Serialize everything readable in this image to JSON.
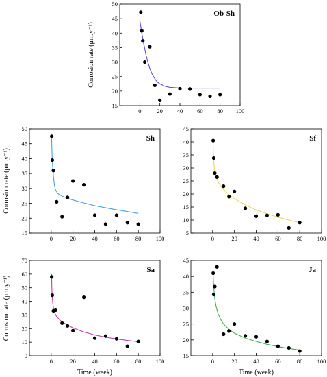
{
  "chart_data": [
    {
      "type": "scatter",
      "title": "Ob-Sh",
      "xlabel": "",
      "ylabel": "Corrosion rate (μm.y⁻¹)",
      "ylabel_sup": "-1",
      "xlim": [
        -20,
        100
      ],
      "ylim": [
        15,
        50
      ],
      "xticks": [
        0,
        20,
        40,
        60,
        80,
        100
      ],
      "yticks": [
        15,
        20,
        25,
        30,
        35,
        40,
        45,
        50
      ],
      "fit_color": "#5a4fd8",
      "points": {
        "x": [
          1,
          2,
          3,
          5,
          10,
          15,
          20,
          30,
          40,
          50,
          60,
          70,
          80
        ],
        "y": [
          47.2,
          40.8,
          37.3,
          30.0,
          35.3,
          22.0,
          16.8,
          19.0,
          20.8,
          20.7,
          18.8,
          18.2,
          18.8
        ]
      },
      "fit": {
        "x": [
          0,
          2,
          4,
          6,
          8,
          10,
          12,
          14,
          16,
          18,
          20,
          25,
          30,
          40,
          50,
          60,
          70,
          80
        ],
        "y": [
          44.5,
          40.0,
          36.2,
          32.8,
          30.0,
          27.8,
          26.1,
          24.8,
          23.8,
          23.0,
          22.5,
          21.7,
          21.3,
          21.05,
          21.0,
          21.0,
          21.0,
          21.0
        ]
      }
    },
    {
      "type": "scatter",
      "title": "Sh",
      "xlabel": "",
      "ylabel": "Corrosion rate (μm.y⁻¹)",
      "ylabel_sup": "-1",
      "xlim": [
        -20,
        100
      ],
      "ylim": [
        15,
        50
      ],
      "xticks": [
        0,
        20,
        40,
        60,
        80,
        100
      ],
      "yticks": [
        15,
        20,
        25,
        30,
        35,
        40,
        45,
        50
      ],
      "fit_color": "#4a9fe0",
      "points": {
        "x": [
          0.5,
          1,
          2,
          5,
          10,
          15,
          20,
          30,
          40,
          50,
          60,
          70,
          80
        ],
        "y": [
          47.5,
          39.5,
          36.0,
          25.5,
          20.5,
          27.0,
          32.5,
          31.2,
          21.0,
          18.0,
          21.0,
          18.5,
          18.0
        ]
      },
      "fit": {
        "x": [
          0.3,
          0.6,
          1,
          1.5,
          2,
          3,
          4,
          6,
          8,
          10,
          15,
          20,
          30,
          40,
          50,
          60,
          70,
          80
        ],
        "y": [
          48.0,
          43.5,
          39.8,
          36.6,
          34.2,
          31.0,
          29.5,
          28.3,
          27.8,
          27.4,
          26.7,
          26.1,
          25.1,
          24.2,
          23.5,
          22.8,
          22.2,
          21.6
        ]
      }
    },
    {
      "type": "scatter",
      "title": "Sf",
      "xlabel": "",
      "ylabel": "",
      "xlim": [
        -20,
        100
      ],
      "ylim": [
        5,
        45
      ],
      "xticks": [
        0,
        20,
        40,
        60,
        80,
        100
      ],
      "yticks": [
        5,
        10,
        15,
        20,
        25,
        30,
        35,
        40,
        45
      ],
      "fit_color": "#e8d860",
      "points": {
        "x": [
          0.5,
          1,
          2,
          4,
          10,
          15,
          20,
          30,
          40,
          50,
          60,
          70,
          80
        ],
        "y": [
          40.5,
          33.8,
          28.0,
          26.5,
          23.0,
          19.0,
          21.0,
          14.5,
          11.5,
          11.8,
          12.0,
          7.0,
          9.0
        ]
      },
      "fit": {
        "x": [
          0.3,
          0.6,
          1,
          1.5,
          2,
          3,
          5,
          8,
          10,
          15,
          20,
          30,
          40,
          50,
          60,
          70,
          80
        ],
        "y": [
          41.0,
          36.0,
          32.5,
          30.0,
          28.6,
          26.7,
          24.6,
          22.7,
          21.8,
          19.8,
          18.2,
          15.8,
          13.9,
          12.4,
          11.1,
          10.0,
          9.0
        ]
      }
    },
    {
      "type": "scatter",
      "title": "Sa",
      "xlabel": "Time (week)",
      "ylabel": "Corrosion rate (μm.y⁻¹)",
      "ylabel_sup": "-1",
      "xlim": [
        -20,
        100
      ],
      "ylim": [
        0,
        70
      ],
      "xticks": [
        0,
        20,
        40,
        60,
        80,
        100
      ],
      "yticks": [
        0,
        10,
        20,
        30,
        40,
        50,
        60,
        70
      ],
      "fit_color": "#c040b0",
      "points": {
        "x": [
          0.5,
          1,
          2,
          4,
          10,
          15,
          20,
          30,
          40,
          50,
          60,
          70,
          80
        ],
        "y": [
          58.0,
          44.5,
          33.0,
          33.5,
          24.0,
          22.0,
          18.5,
          43.0,
          13.0,
          14.5,
          12.5,
          7.0,
          10.5
        ]
      },
      "fit": {
        "x": [
          0.3,
          0.6,
          1,
          1.5,
          2,
          3,
          5,
          8,
          10,
          15,
          20,
          30,
          40,
          50,
          60,
          70,
          80
        ],
        "y": [
          60.0,
          50.0,
          43.0,
          38.5,
          35.5,
          32.0,
          28.8,
          26.2,
          25.0,
          22.5,
          20.5,
          17.5,
          15.3,
          13.7,
          12.4,
          11.3,
          10.3
        ]
      }
    },
    {
      "type": "scatter",
      "title": "Ja",
      "xlabel": "Time (week)",
      "ylabel": "",
      "xlim": [
        -20,
        100
      ],
      "ylim": [
        15,
        45
      ],
      "xticks": [
        0,
        20,
        40,
        60,
        80,
        100
      ],
      "yticks": [
        15,
        20,
        25,
        30,
        35,
        40,
        45
      ],
      "fit_color": "#3fae4a",
      "points": {
        "x": [
          0.5,
          1,
          2,
          4,
          10,
          15,
          20,
          30,
          40,
          50,
          60,
          70,
          80
        ],
        "y": [
          41.0,
          34.3,
          36.8,
          43.0,
          21.8,
          22.8,
          25.0,
          21.3,
          21.0,
          19.5,
          18.0,
          17.5,
          16.5
        ]
      },
      "fit": {
        "x": [
          0.3,
          0.6,
          1,
          1.5,
          2,
          3,
          5,
          8,
          10,
          15,
          20,
          30,
          40,
          50,
          60,
          70,
          80
        ],
        "y": [
          41.5,
          39.0,
          36.8,
          34.6,
          33.0,
          30.8,
          28.2,
          26.0,
          25.0,
          23.3,
          22.1,
          20.6,
          19.5,
          18.6,
          17.9,
          17.3,
          16.8
        ]
      }
    }
  ]
}
